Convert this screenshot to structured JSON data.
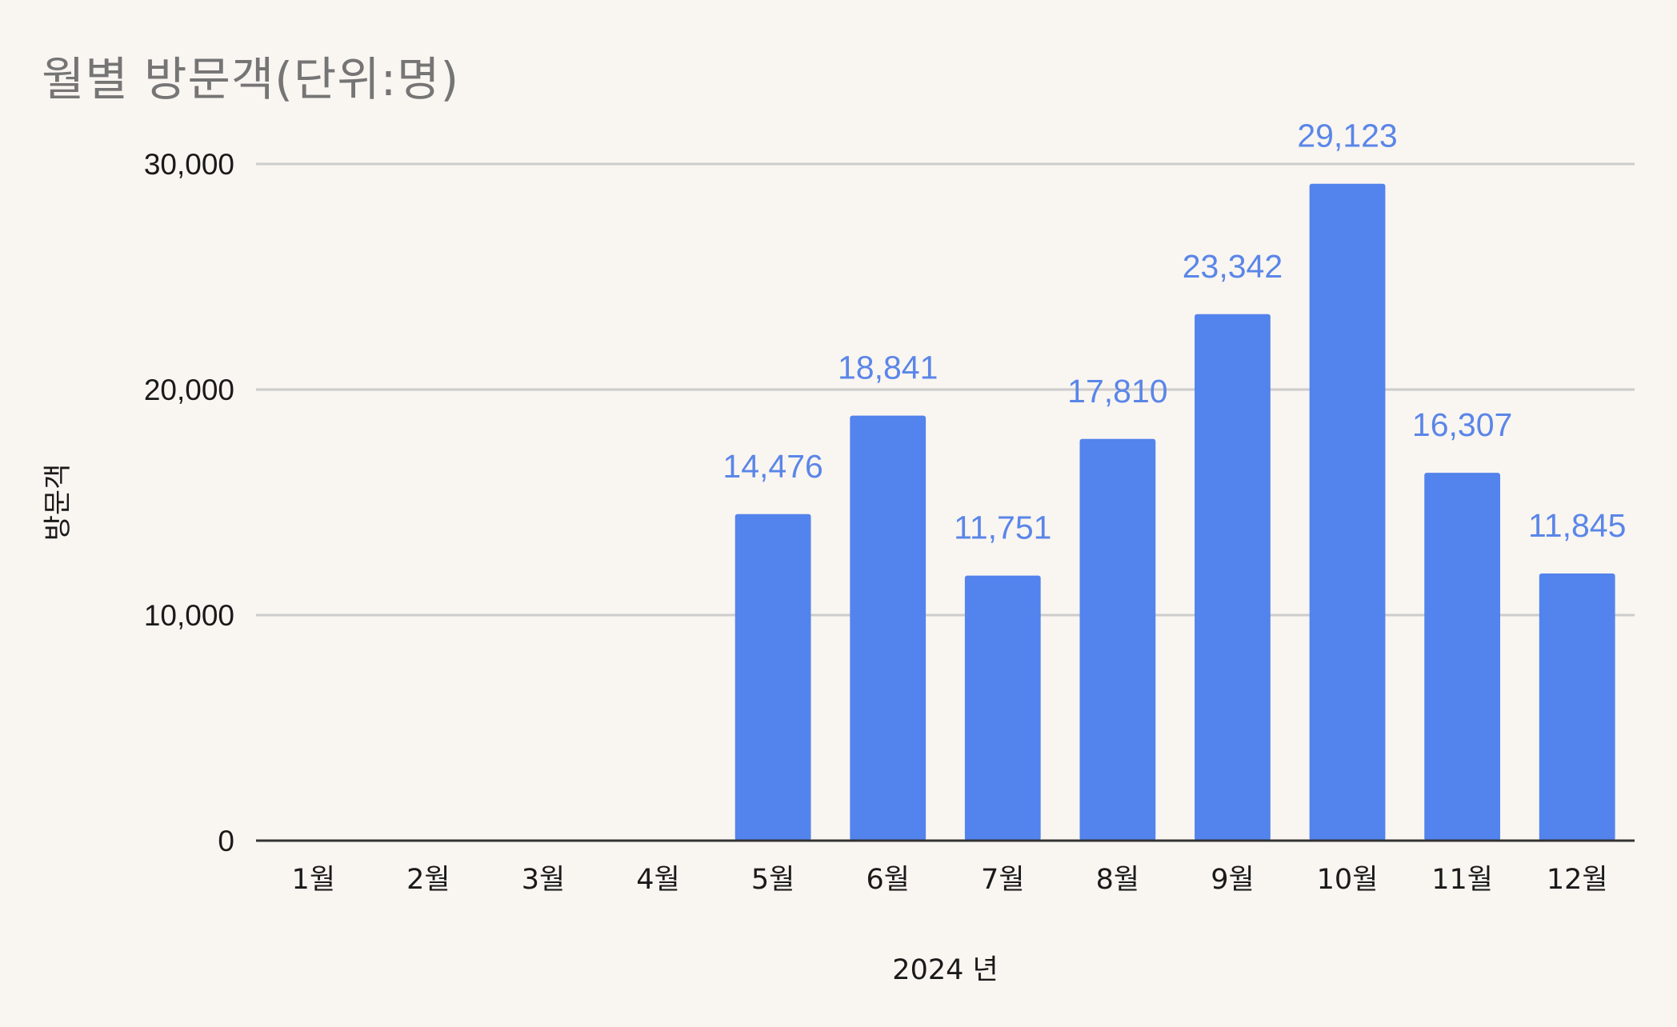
{
  "title": "월별 방문객(단위:명)",
  "colors": {
    "background": "#f9f5f1",
    "bar": "#5383ec",
    "data_label": "#5a86e8",
    "gridline": "#cccccc",
    "baseline": "#333333",
    "title": "#757575"
  },
  "chart_data": {
    "type": "bar",
    "title": "월별 방문객(단위:명)",
    "xlabel": "2024 년",
    "ylabel": "방문객",
    "categories": [
      "1월",
      "2월",
      "3월",
      "4월",
      "5월",
      "6월",
      "7월",
      "8월",
      "9월",
      "10월",
      "11월",
      "12월"
    ],
    "series": [
      {
        "values": [
          null,
          null,
          null,
          null,
          14476,
          18841,
          11751,
          17810,
          23342,
          29123,
          16307,
          11845
        ]
      }
    ],
    "data_labels": [
      "",
      "",
      "",
      "",
      "14,476",
      "18,841",
      "11,751",
      "17,810",
      "23,342",
      "29,123",
      "16,307",
      "11,845"
    ],
    "ylim": [
      0,
      30000
    ],
    "yticks": [
      0,
      10000,
      20000,
      30000
    ],
    "ytick_labels": [
      "0",
      "10,000",
      "20,000",
      "30,000"
    ],
    "grid": true,
    "legend": "none"
  }
}
